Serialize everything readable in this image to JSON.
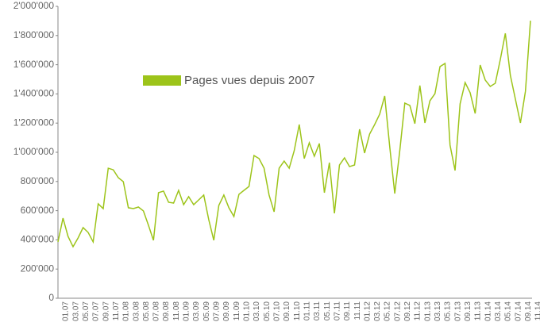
{
  "chart_data": {
    "type": "line",
    "categories": [
      "01.07",
      null,
      "03.07",
      null,
      "05.07",
      null,
      "07.07",
      null,
      "09.07",
      null,
      "11.07",
      null,
      "01.08",
      null,
      "03.08",
      null,
      "05.08",
      null,
      "07.08",
      null,
      "09.08",
      null,
      "11.08",
      null,
      "01.09",
      null,
      "03.09",
      null,
      "05.09",
      null,
      "07.09",
      null,
      "09.09",
      null,
      "11.09",
      null,
      "01.10",
      null,
      "03.10",
      null,
      "05.10",
      null,
      "07.10",
      null,
      "09.10",
      null,
      "11.10",
      null,
      "01.11",
      null,
      "03.11",
      null,
      "05.11",
      null,
      "07.11",
      null,
      "09.11",
      null,
      "11.11",
      null,
      "01.12",
      null,
      "03.12",
      null,
      "05.12",
      null,
      "07.12",
      null,
      "09.12",
      null,
      "11.12",
      null,
      "01.13",
      null,
      "03.13",
      null,
      "05.13",
      null,
      "07.13",
      null,
      "09.13",
      null,
      "11.13",
      null,
      "01.14",
      null,
      "03.14",
      null,
      "05.14",
      null,
      "07.14",
      null,
      "09.14",
      null,
      "11.14"
    ],
    "series": [
      {
        "name": "Pages vues depuis 2007",
        "color": "#9dc41a",
        "values": [
          386000,
          549000,
          424000,
          353000,
          413000,
          484000,
          451000,
          386000,
          647000,
          614000,
          891000,
          880000,
          826000,
          799000,
          620000,
          614000,
          625000,
          598000,
          500000,
          397000,
          723000,
          734000,
          658000,
          652000,
          739000,
          641000,
          696000,
          641000,
          674000,
          707000,
          538000,
          397000,
          636000,
          707000,
          620000,
          560000,
          712000,
          739000,
          766000,
          978000,
          957000,
          891000,
          707000,
          592000,
          891000,
          940000,
          891000,
          1011000,
          1190000,
          957000,
          1065000,
          973000,
          1060000,
          723000,
          929000,
          582000,
          913000,
          962000,
          902000,
          913000,
          1158000,
          995000,
          1125000,
          1190000,
          1261000,
          1386000,
          1038000,
          717000,
          1011000,
          1337000,
          1321000,
          1196000,
          1457000,
          1201000,
          1353000,
          1402000,
          1587000,
          1609000,
          1049000,
          875000,
          1332000,
          1478000,
          1408000,
          1266000,
          1598000,
          1495000,
          1451000,
          1473000,
          1636000,
          1815000,
          1527000,
          1364000,
          1201000,
          1418000,
          1902000
        ]
      }
    ],
    "ylim": [
      0,
      2000000
    ],
    "yticks": [
      0,
      {
        "value": 200000,
        "label": "200'000"
      },
      {
        "value": 400000,
        "label": "400'000"
      },
      {
        "value": 600000,
        "label": "600'000"
      },
      {
        "value": 800000,
        "label": "800'000"
      },
      {
        "value": 1000000,
        "label": "1'000'000"
      },
      {
        "value": 1200000,
        "label": "1'200'000"
      },
      {
        "value": 1400000,
        "label": "1'400'000"
      },
      {
        "value": 1600000,
        "label": "1'600'000"
      },
      {
        "value": 1800000,
        "label": "1'800'000"
      },
      {
        "value": 2000000,
        "label": "2'000'000"
      }
    ],
    "grid": false,
    "legend": "upper left"
  }
}
